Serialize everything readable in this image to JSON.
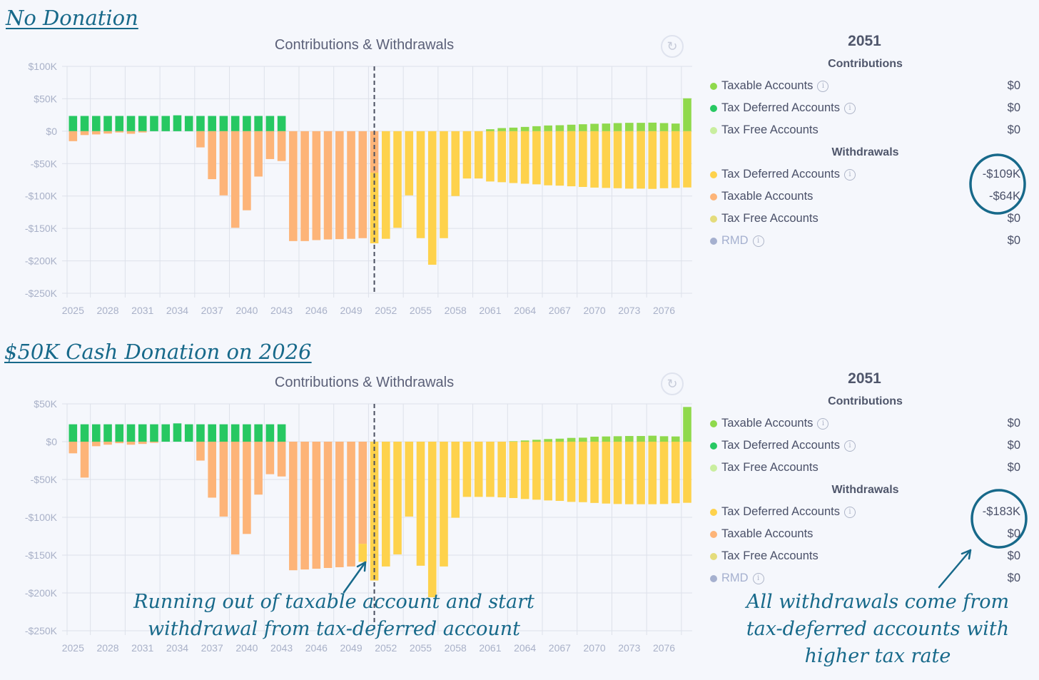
{
  "headings": {
    "no_donation": "No Donation",
    "donation": "$50K Cash Donation on 2026"
  },
  "annotations": {
    "running_out": [
      "Running out of taxable account and start",
      "withdrawal from tax-deferred account"
    ],
    "all_withdrawals": [
      "All withdrawals come from",
      "tax-deferred accounts with",
      "higher tax rate"
    ],
    "color": "#17698a"
  },
  "colors": {
    "contrib_taxable": "#8fd94c",
    "contrib_tax_deferred": "#27c862",
    "contrib_tax_free": "#c9ee9f",
    "wd_tax_deferred": "#fed24c",
    "wd_taxable": "#fdb478",
    "wd_tax_free": "#e4dc7c",
    "rmd": "#a5b0cf"
  },
  "panels": [
    {
      "year": "2051",
      "contributions_label": "Contributions",
      "contributions": [
        {
          "label": "Taxable Accounts",
          "value": "$0",
          "info": true,
          "color_key": "contrib_taxable"
        },
        {
          "label": "Tax Deferred Accounts",
          "value": "$0",
          "info": true,
          "color_key": "contrib_tax_deferred"
        },
        {
          "label": "Tax Free Accounts",
          "value": "$0",
          "info": false,
          "color_key": "contrib_tax_free"
        }
      ],
      "withdrawals_label": "Withdrawals",
      "withdrawals": [
        {
          "label": "Tax Deferred Accounts",
          "value": "-$109K",
          "info": true,
          "color_key": "wd_tax_deferred"
        },
        {
          "label": "Taxable Accounts",
          "value": "-$64K",
          "info": false,
          "color_key": "wd_taxable"
        },
        {
          "label": "Tax Free Accounts",
          "value": "$0",
          "info": false,
          "color_key": "wd_tax_free"
        },
        {
          "label": "RMD",
          "value": "$0",
          "info": true,
          "color_key": "rmd"
        }
      ]
    },
    {
      "year": "2051",
      "contributions_label": "Contributions",
      "contributions": [
        {
          "label": "Taxable Accounts",
          "value": "$0",
          "info": true,
          "color_key": "contrib_taxable"
        },
        {
          "label": "Tax Deferred Accounts",
          "value": "$0",
          "info": true,
          "color_key": "contrib_tax_deferred"
        },
        {
          "label": "Tax Free Accounts",
          "value": "$0",
          "info": false,
          "color_key": "contrib_tax_free"
        }
      ],
      "withdrawals_label": "Withdrawals",
      "withdrawals": [
        {
          "label": "Tax Deferred Accounts",
          "value": "-$183K",
          "info": true,
          "color_key": "wd_tax_deferred"
        },
        {
          "label": "Taxable Accounts",
          "value": "$0",
          "info": false,
          "color_key": "wd_taxable"
        },
        {
          "label": "Tax Free Accounts",
          "value": "$0",
          "info": false,
          "color_key": "wd_tax_free"
        },
        {
          "label": "RMD",
          "value": "$0",
          "info": true,
          "color_key": "rmd"
        }
      ]
    }
  ],
  "chart_data": [
    {
      "type": "bar",
      "stacked": true,
      "title": "Contributions & Withdrawals",
      "units": "$K",
      "x_start": 2025,
      "x_end": 2078,
      "x_ticks": [
        "2025",
        "2028",
        "2031",
        "2034",
        "2037",
        "2040",
        "2043",
        "2046",
        "2049",
        "2052",
        "2055",
        "2058",
        "2061",
        "2064",
        "2067",
        "2070",
        "2073",
        "2076"
      ],
      "y_ticks": [
        100,
        50,
        0,
        -50,
        -100,
        -150,
        -200,
        -250
      ],
      "y_tick_labels": [
        "$100K",
        "$50K",
        "$0",
        "-$50K",
        "-$100K",
        "-$150K",
        "-$200K",
        "-$250K"
      ],
      "ylim": [
        -250,
        100
      ],
      "selected_year": 2051,
      "series": [
        {
          "name": "Contributions: Tax Deferred Accounts",
          "color_key": "contrib_tax_deferred",
          "values": [
            23.5,
            23.5,
            23.5,
            23.5,
            23.5,
            23.5,
            23.5,
            23.5,
            23.5,
            24.5,
            23.5,
            23.5,
            23.5,
            23.5,
            23.5,
            23.5,
            23.5,
            23.5,
            23.5,
            0,
            0,
            0,
            0,
            0,
            0,
            0,
            0,
            0,
            0,
            0,
            0,
            0,
            0,
            0,
            0,
            0,
            0,
            0,
            0,
            0,
            0,
            0,
            0,
            0,
            0,
            0,
            0,
            0,
            0,
            0,
            0,
            0,
            0,
            0
          ]
        },
        {
          "name": "Contributions: Taxable Accounts",
          "color_key": "contrib_taxable",
          "values": [
            0,
            0,
            0,
            0,
            0,
            0,
            0,
            0,
            0,
            0,
            0,
            0,
            0,
            0,
            0,
            0,
            0,
            0,
            0,
            0,
            0,
            0,
            0,
            0,
            0,
            0,
            0,
            0,
            0,
            0,
            0,
            0,
            0,
            0,
            0,
            0,
            3,
            4.8,
            5.5,
            6.6,
            7.7,
            8.8,
            9.2,
            10,
            10.7,
            11.4,
            11.8,
            12.5,
            12.9,
            12.9,
            13.2,
            12.5,
            11.8,
            50.7
          ]
        },
        {
          "name": "Withdrawals: Taxable Accounts",
          "color_key": "wd_taxable",
          "values": [
            -15.4,
            -6,
            -5,
            -3.7,
            -2,
            -4,
            -2,
            0,
            0,
            0,
            0,
            -25,
            -74,
            -99,
            -149,
            -122,
            -70,
            -43,
            -46,
            -169.5,
            -169.5,
            -168,
            -167,
            -166.5,
            -166,
            -165,
            -64,
            0,
            0,
            0,
            0,
            0,
            0,
            0,
            0,
            0,
            0,
            0,
            0,
            0,
            0,
            0,
            0,
            0,
            0,
            0,
            0,
            0,
            0,
            0,
            0,
            0,
            0,
            0
          ]
        },
        {
          "name": "Withdrawals: Tax Deferred Accounts",
          "color_key": "wd_tax_deferred",
          "values": [
            0,
            0,
            0,
            0,
            0,
            0,
            0,
            0,
            0,
            0,
            0,
            0,
            0,
            0,
            0,
            0,
            0,
            0,
            0,
            0,
            0,
            0,
            0,
            0,
            0,
            0,
            -109,
            -166,
            -149,
            -99,
            -165,
            -206,
            -165,
            -100,
            -73,
            -73,
            -77.6,
            -78.7,
            -80,
            -81,
            -82,
            -83.5,
            -84,
            -85,
            -86,
            -87,
            -87.5,
            -88,
            -88.6,
            -88.6,
            -89,
            -88,
            -87.5,
            -86.8
          ]
        }
      ]
    },
    {
      "type": "bar",
      "stacked": true,
      "title": "Contributions & Withdrawals",
      "units": "$K",
      "x_start": 2025,
      "x_end": 2078,
      "x_ticks": [
        "2025",
        "2028",
        "2031",
        "2034",
        "2037",
        "2040",
        "2043",
        "2046",
        "2049",
        "2052",
        "2055",
        "2058",
        "2061",
        "2064",
        "2067",
        "2070",
        "2073",
        "2076"
      ],
      "y_ticks": [
        50,
        0,
        -50,
        -100,
        -150,
        -200,
        -250
      ],
      "y_tick_labels": [
        "$50K",
        "$0",
        "-$50K",
        "-$100K",
        "-$150K",
        "-$200K",
        "-$250K"
      ],
      "ylim": [
        -250,
        50
      ],
      "selected_year": 2051,
      "series": [
        {
          "name": "Contributions: Tax Deferred Accounts",
          "color_key": "contrib_tax_deferred",
          "values": [
            23,
            23,
            23,
            23,
            23,
            23,
            23,
            23,
            23,
            24.2,
            23,
            23,
            23,
            23,
            23,
            23,
            23,
            23,
            23,
            0,
            0,
            0,
            0,
            0,
            0,
            0,
            0,
            0,
            0,
            0,
            0,
            0,
            0,
            0,
            0,
            0,
            0,
            0,
            0,
            0,
            0,
            0,
            0,
            0,
            0,
            0,
            0,
            0,
            0,
            0,
            0,
            0,
            0,
            0
          ]
        },
        {
          "name": "Contributions: Taxable Accounts",
          "color_key": "contrib_taxable",
          "values": [
            0,
            0,
            0,
            0,
            0,
            0,
            0,
            0,
            0,
            0,
            0,
            0,
            0,
            0,
            0,
            0,
            0,
            0,
            0,
            0,
            0,
            0,
            0,
            0,
            0,
            0,
            0,
            0,
            0,
            0,
            0,
            0,
            0,
            0,
            0,
            0,
            0,
            0,
            0.6,
            1.6,
            2.5,
            3.5,
            4,
            5,
            5.3,
            6.6,
            6.9,
            7.2,
            7.5,
            7.5,
            7.9,
            7.2,
            6.9,
            45.9
          ]
        },
        {
          "name": "Withdrawals: Taxable Accounts",
          "color_key": "wd_taxable",
          "values": [
            -15.4,
            -47.5,
            -6,
            -4,
            -2,
            -4,
            -3,
            -1.5,
            0,
            0,
            0,
            -25,
            -74,
            -99,
            -149,
            -122,
            -70,
            -43,
            -46,
            -170,
            -169,
            -168,
            -167,
            -166,
            -165,
            -135,
            0,
            0,
            0,
            0,
            0,
            0,
            0,
            0,
            0,
            0,
            0,
            0,
            0,
            0,
            0,
            0,
            0,
            0,
            0,
            0,
            0,
            0,
            0,
            0,
            0,
            0,
            0,
            0
          ]
        },
        {
          "name": "Withdrawals: Tax Deferred Accounts",
          "color_key": "wd_tax_deferred",
          "values": [
            0,
            0,
            0,
            0,
            0,
            0,
            0,
            0,
            0,
            0,
            0,
            0,
            0,
            0,
            0,
            0,
            0,
            0,
            0,
            0,
            0,
            0,
            0,
            0,
            0,
            -24,
            -183.6,
            -165,
            -149,
            -99,
            -164,
            -205.7,
            -165,
            -100.6,
            -73,
            -73,
            -73,
            -73.6,
            -74.5,
            -75.8,
            -76.7,
            -77.7,
            -78.3,
            -79.6,
            -80,
            -81,
            -81.8,
            -82.4,
            -82.7,
            -82.7,
            -82.7,
            -82.4,
            -81.4,
            -80.8
          ]
        }
      ]
    }
  ]
}
